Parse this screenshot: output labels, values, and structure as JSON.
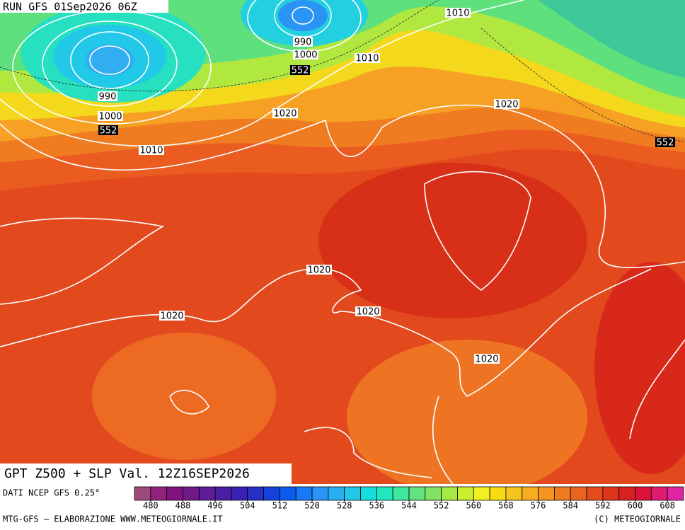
{
  "header": {
    "run": "RUN GFS 01Sep2026 06Z"
  },
  "map": {
    "slp_labels": [
      "990",
      "1000",
      "1010",
      "990",
      "1000",
      "1010",
      "1010",
      "1020",
      "1020",
      "1020",
      "1020",
      "1020",
      "1020"
    ],
    "z500_labels": [
      "552",
      "552",
      "552"
    ]
  },
  "title": "GPT Z500 + SLP Val. 12Z16SEP2026",
  "colorbar": {
    "range": [
      476,
      612
    ],
    "ticks": [
      480,
      488,
      496,
      504,
      512,
      520,
      528,
      536,
      544,
      552,
      560,
      568,
      576,
      584,
      592,
      600,
      608
    ],
    "colors": [
      "#a04a7c",
      "#92237c",
      "#82127f",
      "#701a8a",
      "#5e1c96",
      "#4c1ea4",
      "#3a20b4",
      "#2630c6",
      "#1442dc",
      "#0a5cef",
      "#1878f5",
      "#2a94f5",
      "#2aaef0",
      "#22c6e8",
      "#14dede",
      "#22e8c0",
      "#40e8a0",
      "#62e280",
      "#84e262",
      "#a6e844",
      "#ccf030",
      "#f2f020",
      "#f8dc12",
      "#f8c420",
      "#f8ac22",
      "#f69420",
      "#f07c20",
      "#ea6420",
      "#e44c1e",
      "#de341c",
      "#d8201e",
      "#dc1038",
      "#e01a70",
      "#e024a4"
    ]
  },
  "footer": {
    "source": "DATI NCEP GFS 0.25°",
    "credits": "MTG-GFS – ELABORAZIONE WWW.METEOGIORNALE.IT",
    "copyright": "(C) METEOGIORNALE"
  }
}
